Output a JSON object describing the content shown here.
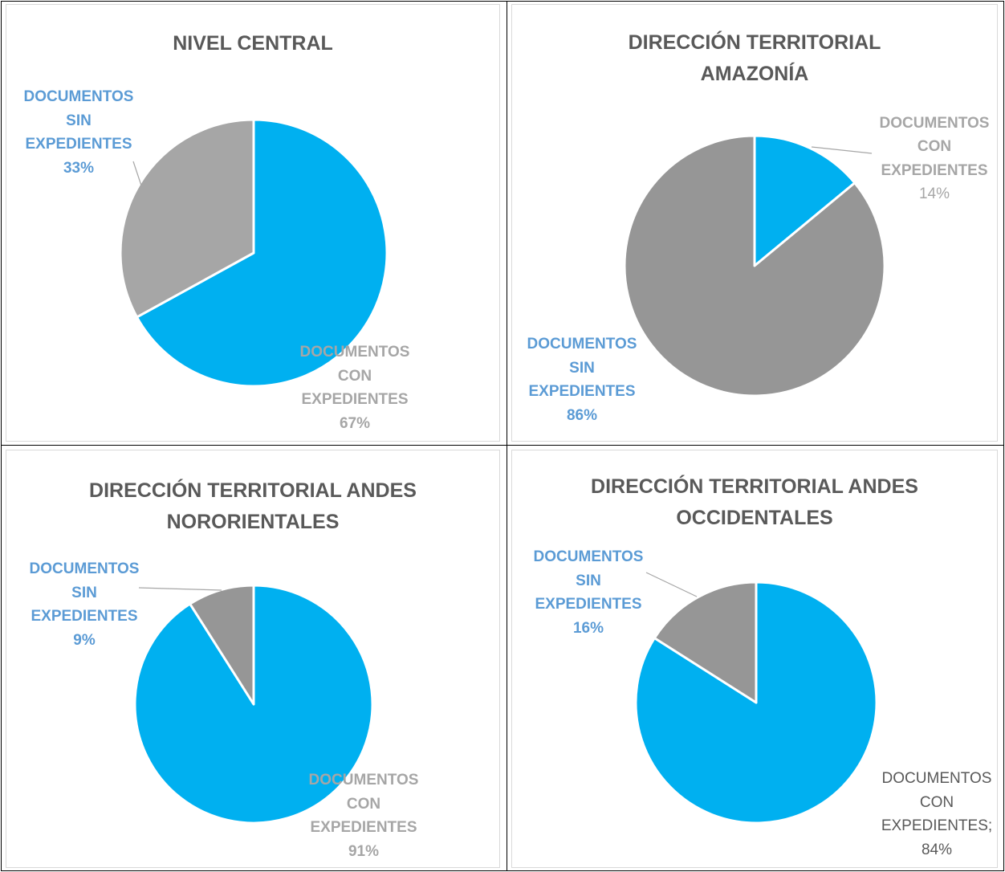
{
  "colors": {
    "con": "#00b0f0",
    "sin": "#a6a6a6",
    "sin_dark": "#969696",
    "label_blue": "#5b9bd5",
    "label_gray": "#a6a6a6",
    "label_dark": "#595959"
  },
  "chart_data": [
    {
      "type": "pie",
      "title": "NIVEL CENTRAL",
      "slices": [
        {
          "name": "DOCUMENTOS CON EXPEDIENTES",
          "value": 67,
          "label": "DOCUMENTOS\nCON\nEXPEDIENTES\n67%"
        },
        {
          "name": "DOCUMENTOS SIN EXPEDIENTES",
          "value": 33,
          "label": "DOCUMENTOS\nSIN\nEXPEDIENTES\n33%"
        }
      ]
    },
    {
      "type": "pie",
      "title": "DIRECCIÓN TERRITORIAL\nAMAZONÍA",
      "slices": [
        {
          "name": "DOCUMENTOS CON EXPEDIENTES",
          "value": 14,
          "label": "DOCUMENTOS\nCON\nEXPEDIENTES\n14%"
        },
        {
          "name": "DOCUMENTOS SIN EXPEDIENTES",
          "value": 86,
          "label": "DOCUMENTOS\nSIN\nEXPEDIENTES\n86%"
        }
      ]
    },
    {
      "type": "pie",
      "title": "DIRECCIÓN TERRITORIAL ANDES\nNORORIENTALES",
      "slices": [
        {
          "name": "DOCUMENTOS CON EXPEDIENTES",
          "value": 91,
          "label": "DOCUMENTOS\nCON\nEXPEDIENTES\n91%"
        },
        {
          "name": "DOCUMENTOS SIN EXPEDIENTES",
          "value": 9,
          "label": "DOCUMENTOS\nSIN\nEXPEDIENTES\n9%"
        }
      ]
    },
    {
      "type": "pie",
      "title": "DIRECCIÓN TERRITORIAL ANDES\nOCCIDENTALES",
      "slices": [
        {
          "name": "DOCUMENTOS CON EXPEDIENTES",
          "value": 84,
          "label": "DOCUMENTOS\nCON\nEXPEDIENTES;\n84%"
        },
        {
          "name": "DOCUMENTOS SIN EXPEDIENTES",
          "value": 16,
          "label": "DOCUMENTOS\nSIN\nEXPEDIENTES\n16%"
        }
      ]
    }
  ]
}
